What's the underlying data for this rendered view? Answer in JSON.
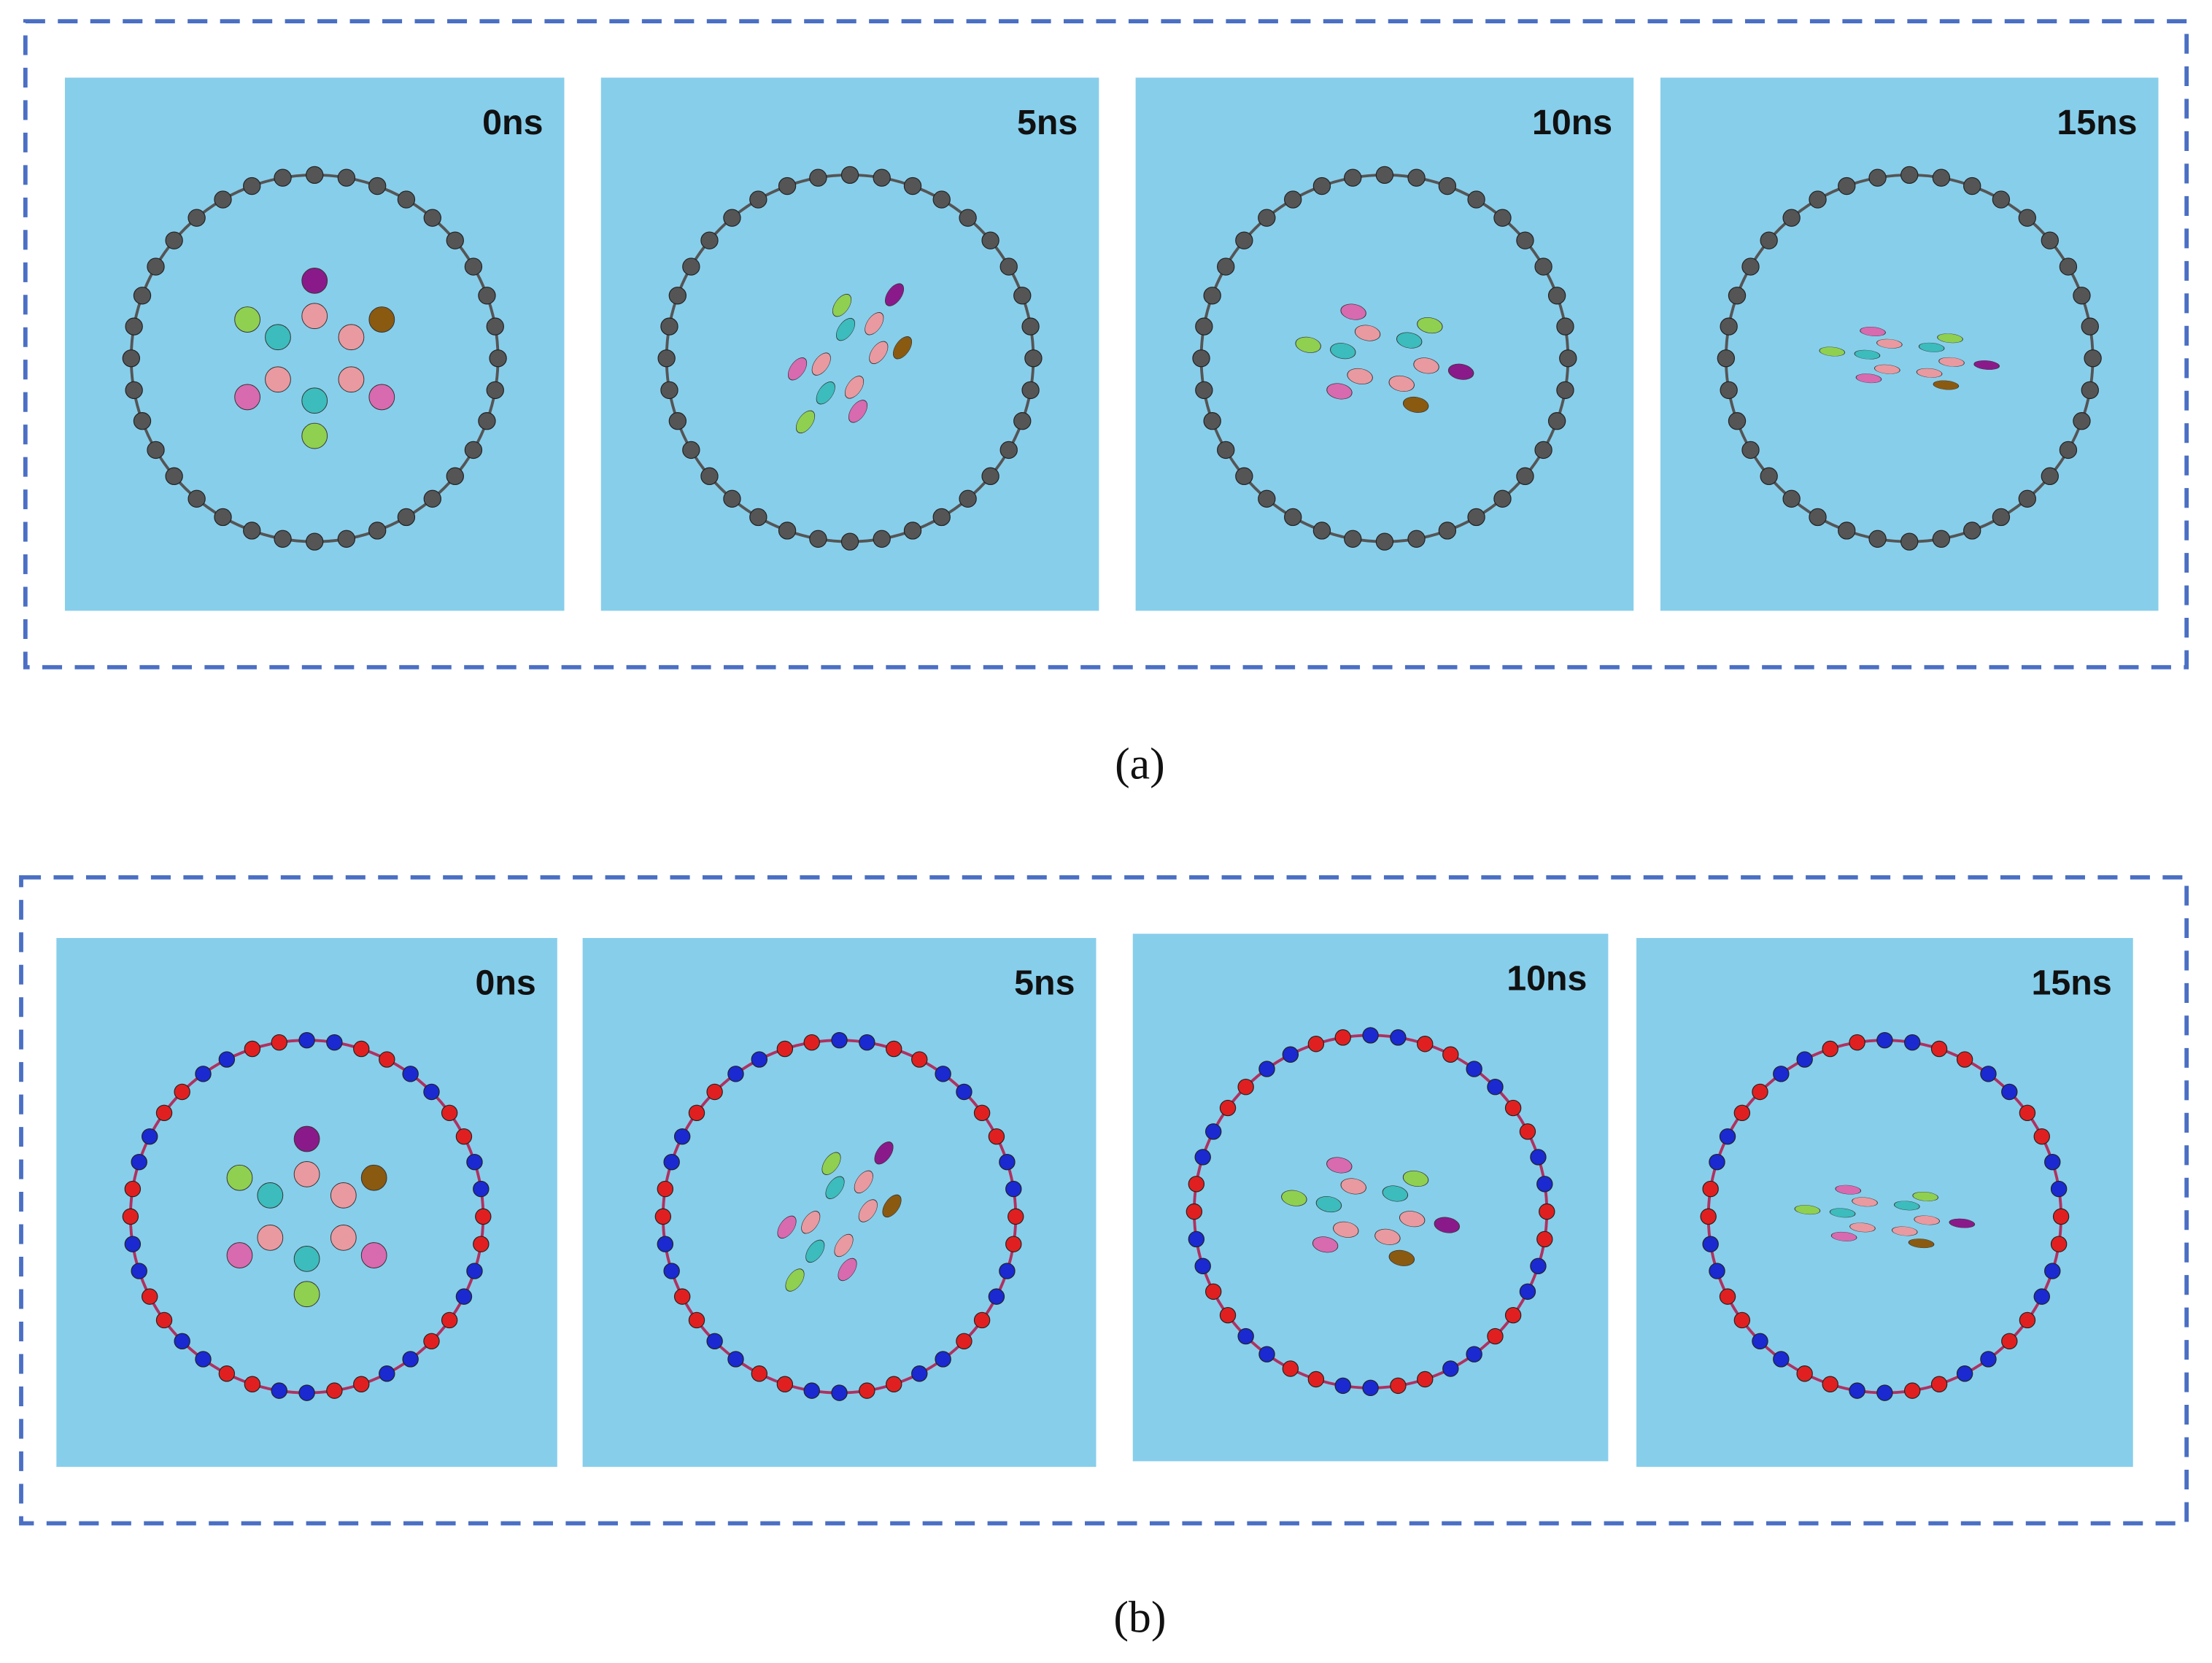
{
  "figure": {
    "panels": [
      {
        "caption": "(a)",
        "frames": [
          {
            "time": "0ns"
          },
          {
            "time": "5ns"
          },
          {
            "time": "10ns"
          },
          {
            "time": "15ns"
          }
        ]
      },
      {
        "caption": "(b)",
        "frames": [
          {
            "time": "0ns"
          },
          {
            "time": "5ns"
          },
          {
            "time": "10ns"
          },
          {
            "time": "15ns"
          }
        ]
      }
    ]
  }
}
